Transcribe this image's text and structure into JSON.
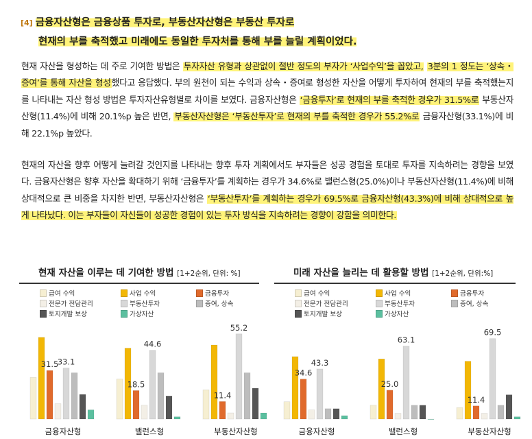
{
  "heading": {
    "tag": "[4]",
    "line1": "금융자산형은 금융상품 투자로, 부동산자산형은 부동산 투자로",
    "line2": "현재의 부를 축적했고 미래에도 동일한 투자처를 통해 부를 늘릴 계획이었다."
  },
  "para1": {
    "s1": "현재 자산을 형성하는 데 주로 기여한 방법은 ",
    "s2": "투자자산 유형과 상관없이 절반 정도의 부자가 ‘사업수익’을 꼽았고,",
    "s3": "3분의 1 정도는 ‘상속・증여’를 통해 자산을 형성",
    "s4": "했다고 응답했다. 부의 원천이 되는 수익과 상속・증여로 형성한 자산을 어떻게 투자하여 현재의 부를 축적했는지를 나타내는 자산 형성 방법은 투자자산유형별로 차이를 보였다. 금융자산형은 ",
    "s5": "‘금융투자’로 현재의 부를 축적한 경우가 31.5%로",
    "s6": " 부동산자산형(11.4%)에 비해 20.1%p 높은 반면, ",
    "s7": "부동산자산형은 ‘부동산투자’로 현재의 부를 축적한 경우가 55.2%로",
    "s8": " 금융자산형(33.1%)에 비해 22.1%p 높았다."
  },
  "para2": {
    "s1": "현재의 자산을 향후 어떻게 늘려갈 것인지를 나타내는 향후 투자 계획에서도 부자들은 성공 경험을 토대로 투자를 지속하려는 경향을 보였다. 금융자산형은 향후 자산을 확대하기 위해 ‘금융투자’를 계획하는 경우가 34.6%로 밸런스형(25.0%)이나 부동산자산형(11.4%)에 비해 상대적으로 큰 비중을 차지한 반면, 부동산자산형은 ",
    "s2": "‘부동산투자’를 계획하는 경우가 69.5%로 금융자산형(43.3%)에 비해 상대적으로 높게 나타났다. 이는 부자들이 자신들이 성공한 경험이 있는 투자 방식을 지속하려는 경향이 강함을 의미한다."
  },
  "chart_data": [
    {
      "type": "bar",
      "title": "현재 자산을 이루는 데 기여한 방법",
      "unit": "[1+2순위, 단위: %]",
      "categories": [
        "금융자산형",
        "밸런스형",
        "부동산자산형"
      ],
      "series": [
        {
          "name": "급여 수익",
          "color": "#f6efd2",
          "values": [
            27,
            26,
            19
          ]
        },
        {
          "name": "사업 수익",
          "color": "#f2b705",
          "values": [
            53,
            46,
            48
          ]
        },
        {
          "name": "금융투자",
          "color": "#e06a2c",
          "values": [
            31.5,
            18.5,
            11.4
          ]
        },
        {
          "name": "전문가 전담관리",
          "color": "#f3efe6",
          "values": [
            10,
            9,
            4
          ]
        },
        {
          "name": "부동산투자",
          "color": "#d8d8d8",
          "values": [
            33.1,
            44.6,
            55.2
          ]
        },
        {
          "name": "증여, 상속",
          "color": "#bdbdbd",
          "values": [
            30,
            30,
            30
          ]
        },
        {
          "name": "토지개발 보상",
          "color": "#555555",
          "values": [
            16,
            15,
            20
          ]
        },
        {
          "name": "가상자산",
          "color": "#5bbf9f",
          "values": [
            6,
            1.5,
            4
          ]
        }
      ],
      "value_labels": [
        {
          "category": 0,
          "series": 2,
          "text": "31.5"
        },
        {
          "category": 0,
          "series": 4,
          "text": "33.1"
        },
        {
          "category": 1,
          "series": 2,
          "text": "18.5"
        },
        {
          "category": 1,
          "series": 4,
          "text": "44.6"
        },
        {
          "category": 2,
          "series": 2,
          "text": "11.4"
        },
        {
          "category": 2,
          "series": 4,
          "text": "55.2"
        }
      ],
      "ylim": [
        0,
        60
      ]
    },
    {
      "type": "bar",
      "title": "미래 자산을 늘리는 데 활용할 방법",
      "unit": "[1+2순위, 단위:%]",
      "categories": [
        "금융자산형",
        "밸런스형",
        "부동산자산형"
      ],
      "series": [
        {
          "name": "급여 수익",
          "color": "#f6efd2",
          "values": [
            15,
            12,
            10
          ]
        },
        {
          "name": "사업 수익",
          "color": "#f2b705",
          "values": [
            54,
            52,
            50
          ]
        },
        {
          "name": "금융투자",
          "color": "#e06a2c",
          "values": [
            34.6,
            25.0,
            11.4
          ]
        },
        {
          "name": "전문가 전담관리",
          "color": "#f3efe6",
          "values": [
            8,
            5,
            5
          ]
        },
        {
          "name": "부동산투자",
          "color": "#d8d8d8",
          "values": [
            43.3,
            63.1,
            69.5
          ]
        },
        {
          "name": "증여, 상속",
          "color": "#bdbdbd",
          "values": [
            9,
            12,
            12
          ]
        },
        {
          "name": "토지개발 보상",
          "color": "#555555",
          "values": [
            9,
            12,
            21
          ]
        },
        {
          "name": "가상자산",
          "color": "#5bbf9f",
          "values": [
            3,
            0,
            2
          ]
        }
      ],
      "value_labels": [
        {
          "category": 0,
          "series": 2,
          "text": "34.6"
        },
        {
          "category": 0,
          "series": 4,
          "text": "43.3"
        },
        {
          "category": 1,
          "series": 2,
          "text": "25.0"
        },
        {
          "category": 1,
          "series": 4,
          "text": "63.1"
        },
        {
          "category": 2,
          "series": 2,
          "text": "11.4"
        },
        {
          "category": 2,
          "series": 4,
          "text": "69.5"
        }
      ],
      "ylim": [
        0,
        80
      ]
    }
  ]
}
